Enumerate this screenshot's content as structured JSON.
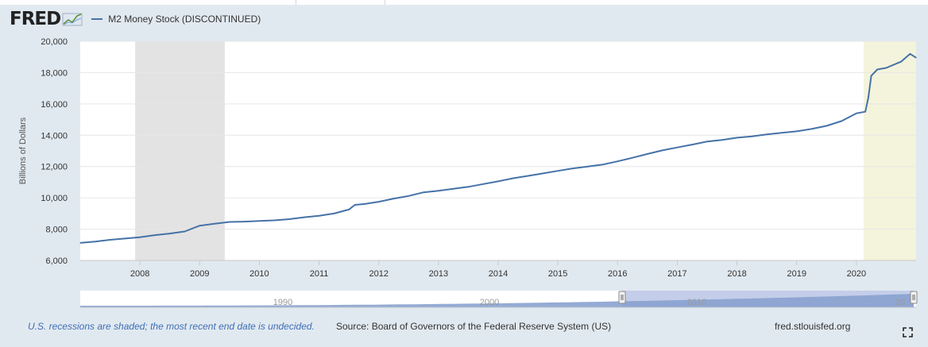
{
  "header": {
    "logo_text": "FRED",
    "series_name": "M2 Money Stock (DISCONTINUED)",
    "series_color": "#4572a7"
  },
  "footer": {
    "note": "U.S. recessions are shaded; the most recent end date is undecided.",
    "source": "Source: Board of Governors of the Federal Reserve System (US)",
    "site": "fred.stlouisfed.org"
  },
  "icons": {
    "logo_spark": "trend-sparkline-icon",
    "fullscreen": "fullscreen-icon"
  },
  "colors": {
    "line": "#4572a7",
    "recession": "#e3e3e3",
    "undecided_recession": "#f4f4dc",
    "navigator_fill": "#8aa2cf",
    "navigator_selected": "#c4cde9"
  },
  "chart_data": {
    "type": "line",
    "ylabel": "Billions of Dollars",
    "ylim": [
      6000,
      20000
    ],
    "yticks": [
      6000,
      8000,
      10000,
      12000,
      14000,
      16000,
      18000,
      20000
    ],
    "ytick_labels": [
      "6,000",
      "8,000",
      "10,000",
      "12,000",
      "14,000",
      "16,000",
      "18,000",
      "20,000"
    ],
    "xlim": [
      2007.0,
      2021.0
    ],
    "xticks": [
      2008,
      2009,
      2010,
      2011,
      2012,
      2013,
      2014,
      2015,
      2016,
      2017,
      2018,
      2019,
      2020
    ],
    "grid": true,
    "legend": "top-left",
    "recessions": [
      {
        "start": 2007.92,
        "end": 2009.42,
        "status": "ended"
      },
      {
        "start": 2020.12,
        "end": 2021.0,
        "status": "undecided"
      }
    ],
    "series": [
      {
        "name": "M2 Money Stock (DISCONTINUED)",
        "x": [
          2007.0,
          2007.25,
          2007.5,
          2007.75,
          2008.0,
          2008.25,
          2008.5,
          2008.75,
          2009.0,
          2009.25,
          2009.5,
          2009.75,
          2010.0,
          2010.25,
          2010.5,
          2010.75,
          2011.0,
          2011.25,
          2011.5,
          2011.6,
          2011.75,
          2012.0,
          2012.25,
          2012.5,
          2012.75,
          2013.0,
          2013.25,
          2013.5,
          2013.75,
          2014.0,
          2014.25,
          2014.5,
          2014.75,
          2015.0,
          2015.25,
          2015.5,
          2015.75,
          2016.0,
          2016.25,
          2016.5,
          2016.75,
          2017.0,
          2017.25,
          2017.5,
          2017.75,
          2018.0,
          2018.25,
          2018.5,
          2018.75,
          2019.0,
          2019.25,
          2019.5,
          2019.75,
          2020.0,
          2020.15,
          2020.2,
          2020.25,
          2020.35,
          2020.5,
          2020.75,
          2020.9,
          2021.0
        ],
        "values": [
          7120,
          7200,
          7320,
          7400,
          7480,
          7620,
          7720,
          7850,
          8220,
          8350,
          8460,
          8480,
          8520,
          8560,
          8640,
          8760,
          8850,
          9000,
          9250,
          9550,
          9600,
          9750,
          9950,
          10120,
          10350,
          10450,
          10580,
          10700,
          10880,
          11050,
          11250,
          11400,
          11560,
          11720,
          11880,
          12000,
          12120,
          12330,
          12560,
          12800,
          13030,
          13220,
          13400,
          13600,
          13700,
          13840,
          13930,
          14050,
          14150,
          14250,
          14400,
          14600,
          14900,
          15400,
          15500,
          16400,
          17800,
          18200,
          18300,
          18700,
          19200,
          18950
        ]
      }
    ],
    "navigator": {
      "tick_labels": [
        "1990",
        "2000",
        "2010",
        "20"
      ]
    }
  }
}
